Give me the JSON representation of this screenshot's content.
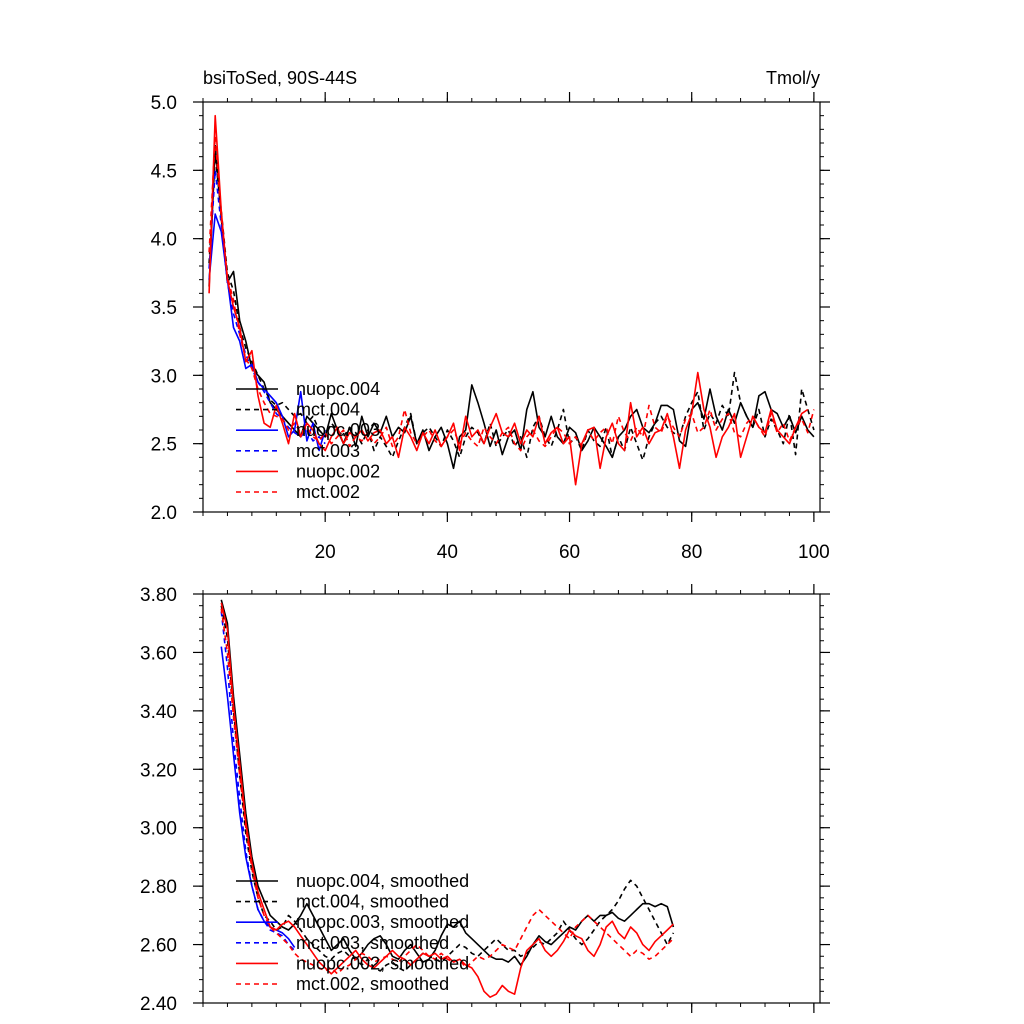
{
  "chart_data": [
    {
      "type": "line",
      "title": "bsiToSed, 90S-44S",
      "units": "Tmol/y",
      "xlim": [
        0,
        101
      ],
      "ylim": [
        2.0,
        5.0
      ],
      "xticks": [
        20,
        40,
        60,
        80,
        100
      ],
      "yticks": [
        2.0,
        2.5,
        3.0,
        3.5,
        4.0,
        4.5,
        5.0
      ],
      "ytick_labels": [
        "2.0",
        "2.5",
        "3.0",
        "3.5",
        "4.0",
        "4.5",
        "5.0"
      ],
      "legend_position": "lower-left",
      "x_start": 1,
      "series": [
        {
          "name": "nuopc.004",
          "color": "#000000",
          "dash": false,
          "values": [
            3.65,
            4.68,
            4.15,
            3.68,
            3.76,
            3.4,
            3.25,
            3.05,
            3.0,
            2.95,
            2.8,
            2.75,
            2.7,
            2.65,
            2.6,
            2.55,
            2.7,
            2.65,
            2.6,
            2.55,
            2.72,
            2.6,
            2.5,
            2.62,
            2.48,
            2.7,
            2.55,
            2.65,
            2.58,
            2.7,
            2.55,
            2.62,
            2.58,
            2.7,
            2.5,
            2.6,
            2.45,
            2.55,
            2.62,
            2.5,
            2.32,
            2.55,
            2.6,
            2.93,
            2.8,
            2.65,
            2.48,
            2.6,
            2.42,
            2.55,
            2.6,
            2.45,
            2.75,
            2.88,
            2.62,
            2.55,
            2.7,
            2.55,
            2.5,
            2.62,
            2.58,
            2.45,
            2.52,
            2.62,
            2.55,
            2.48,
            2.4,
            2.55,
            2.6,
            2.7,
            2.75,
            2.62,
            2.58,
            2.65,
            2.78,
            2.78,
            2.75,
            2.52,
            2.48,
            2.75,
            2.8,
            2.68,
            2.9,
            2.7,
            2.6,
            2.75,
            2.65,
            2.8,
            2.7,
            2.62,
            2.85,
            2.88,
            2.75,
            2.72,
            2.62,
            2.7,
            2.58,
            2.7,
            2.6,
            2.55
          ]
        },
        {
          "name": "mct.004",
          "color": "#000000",
          "dash": true,
          "values": [
            3.82,
            4.6,
            4.2,
            3.75,
            3.62,
            3.35,
            3.2,
            3.1,
            3.0,
            2.9,
            2.82,
            2.78,
            2.8,
            2.75,
            2.7,
            2.72,
            2.65,
            2.7,
            2.6,
            2.55,
            2.65,
            2.6,
            2.55,
            2.62,
            2.58,
            2.5,
            2.6,
            2.45,
            2.55,
            2.48,
            2.4,
            2.52,
            2.62,
            2.72,
            2.5,
            2.58,
            2.62,
            2.55,
            2.48,
            2.6,
            2.52,
            2.4,
            2.55,
            2.62,
            2.58,
            2.5,
            2.65,
            2.48,
            2.55,
            2.6,
            2.48,
            2.55,
            2.4,
            2.62,
            2.7,
            2.55,
            2.48,
            2.6,
            2.75,
            2.5,
            2.55,
            2.45,
            2.6,
            2.52,
            2.48,
            2.62,
            2.4,
            2.55,
            2.45,
            2.62,
            2.5,
            2.38,
            2.55,
            2.65,
            2.7,
            2.62,
            2.58,
            2.55,
            2.7,
            2.8,
            2.88,
            2.6,
            2.72,
            2.65,
            2.78,
            2.7,
            3.02,
            2.8,
            2.7,
            2.62,
            2.75,
            2.55,
            2.68,
            2.6,
            2.5,
            2.72,
            2.42,
            2.9,
            2.75,
            2.6
          ]
        },
        {
          "name": "nuopc.003",
          "color": "#0000ff",
          "dash": false,
          "values": [
            3.7,
            4.18,
            4.05,
            3.7,
            3.35,
            3.25,
            3.05,
            3.08,
            2.95,
            2.9,
            2.85,
            2.8,
            2.7,
            2.55,
            2.6,
            2.88,
            2.52,
            2.65,
            2.45,
            2.6
          ]
        },
        {
          "name": "mct.003",
          "color": "#0000ff",
          "dash": true,
          "values": [
            3.78,
            4.5,
            4.1,
            3.68,
            3.45,
            3.3,
            3.15,
            3.05,
            2.95,
            2.88,
            2.8,
            2.72,
            2.68,
            2.62,
            2.58,
            2.55,
            2.6,
            2.52,
            2.55,
            2.5
          ]
        },
        {
          "name": "nuopc.002",
          "color": "#ff0000",
          "dash": false,
          "values": [
            3.6,
            4.9,
            4.2,
            3.7,
            3.5,
            3.35,
            3.1,
            3.18,
            2.85,
            2.65,
            2.62,
            2.78,
            2.65,
            2.5,
            2.72,
            2.55,
            2.65,
            2.6,
            2.5,
            2.45,
            2.55,
            2.62,
            2.5,
            2.58,
            2.55,
            2.6,
            2.52,
            2.58,
            2.6,
            2.5,
            2.55,
            2.4,
            2.62,
            2.55,
            2.45,
            2.58,
            2.5,
            2.6,
            2.48,
            2.55,
            2.65,
            2.45,
            2.7,
            2.55,
            2.6,
            2.5,
            2.62,
            2.72,
            2.58,
            2.55,
            2.65,
            2.5,
            2.6,
            2.55,
            2.7,
            2.5,
            2.58,
            2.62,
            2.5,
            2.55,
            2.2,
            2.5,
            2.6,
            2.62,
            2.32,
            2.55,
            2.65,
            2.5,
            2.45,
            2.8,
            2.55,
            2.62,
            2.5,
            2.58,
            2.6,
            2.72,
            2.55,
            2.32,
            2.6,
            2.72,
            3.02,
            2.75,
            2.62,
            2.4,
            2.55,
            2.62,
            2.72,
            2.4,
            2.55,
            2.7,
            2.62,
            2.58,
            2.75,
            2.6,
            2.55,
            2.5,
            2.62,
            2.72,
            2.75
          ]
        },
        {
          "name": "mct.002",
          "color": "#ff0000",
          "dash": true,
          "values": [
            3.9,
            4.75,
            4.15,
            3.72,
            3.55,
            3.3,
            3.12,
            3.05,
            2.9,
            2.8,
            2.72,
            2.7,
            2.68,
            2.6,
            2.65,
            2.58,
            2.62,
            2.55,
            2.52,
            2.58,
            2.5,
            2.55,
            2.6,
            2.48,
            2.55,
            2.52,
            2.58,
            2.5,
            2.55,
            2.62,
            2.48,
            2.55,
            2.75,
            2.58,
            2.5,
            2.55,
            2.6,
            2.52,
            2.48,
            2.55,
            2.6,
            2.5,
            2.58,
            2.52,
            2.48,
            2.62,
            2.55,
            2.5,
            2.58,
            2.62,
            2.5,
            2.45,
            2.55,
            2.6,
            2.52,
            2.48,
            2.55,
            2.62,
            2.58,
            2.5,
            2.55,
            2.48,
            2.6,
            2.52,
            2.58,
            2.62,
            2.5,
            2.7,
            2.58,
            2.52,
            2.62,
            2.55,
            2.78,
            2.62,
            2.58,
            2.7,
            2.62,
            2.55,
            2.68,
            2.72,
            2.58,
            2.62,
            2.75,
            2.6,
            2.68,
            2.72,
            2.58,
            2.55,
            2.65,
            2.7,
            2.62,
            2.55,
            2.72,
            2.58,
            2.65,
            2.52,
            2.62,
            2.68,
            2.58,
            2.75
          ]
        }
      ],
      "legend": [
        "nuopc.004",
        "mct.004",
        "nuopc.003",
        "mct.003",
        "nuopc.002",
        "mct.002"
      ]
    },
    {
      "type": "line",
      "title": "",
      "xlim": [
        0,
        101
      ],
      "ylim": [
        2.4,
        3.8
      ],
      "xticks": [
        20,
        40,
        60,
        80,
        100
      ],
      "yticks": [
        2.4,
        2.6,
        2.8,
        3.0,
        3.2,
        3.4,
        3.6,
        3.8
      ],
      "ytick_labels": [
        "2.40",
        "2.60",
        "2.80",
        "3.00",
        "3.20",
        "3.40",
        "3.60",
        "3.80"
      ],
      "legend_position": "lower-left",
      "x_start": 3,
      "series": [
        {
          "name": "nuopc.004, smoothed",
          "color": "#000000",
          "dash": false,
          "values": [
            3.78,
            3.7,
            3.45,
            3.25,
            3.05,
            2.9,
            2.8,
            2.75,
            2.7,
            2.68,
            2.66,
            2.65,
            2.67,
            2.7,
            2.74,
            2.7,
            2.66,
            2.62,
            2.58,
            2.6,
            2.62,
            2.58,
            2.55,
            2.57,
            2.6,
            2.62,
            2.63,
            2.6,
            2.56,
            2.55,
            2.58,
            2.6,
            2.57,
            2.54,
            2.55,
            2.58,
            2.63,
            2.67,
            2.66,
            2.68,
            2.64,
            2.62,
            2.6,
            2.58,
            2.56,
            2.55,
            2.55,
            2.54,
            2.56,
            2.53,
            2.56,
            2.6,
            2.63,
            2.61,
            2.6,
            2.62,
            2.64,
            2.66,
            2.65,
            2.68,
            2.7,
            2.68,
            2.7,
            2.7,
            2.71,
            2.69,
            2.68,
            2.7,
            2.72,
            2.74,
            2.74,
            2.73,
            2.74,
            2.73,
            2.66
          ]
        },
        {
          "name": "mct.004, smoothed",
          "color": "#000000",
          "dash": true,
          "values": [
            3.76,
            3.65,
            3.4,
            3.18,
            2.98,
            2.85,
            2.76,
            2.7,
            2.68,
            2.65,
            2.66,
            2.7,
            2.68,
            2.65,
            2.62,
            2.6,
            2.58,
            2.56,
            2.55,
            2.57,
            2.58,
            2.56,
            2.55,
            2.53,
            2.55,
            2.52,
            2.51,
            2.53,
            2.54,
            2.52,
            2.51,
            2.53,
            2.55,
            2.57,
            2.56,
            2.55,
            2.54,
            2.56,
            2.58,
            2.6,
            2.59,
            2.57,
            2.56,
            2.58,
            2.6,
            2.62,
            2.6,
            2.58,
            2.58,
            2.56,
            2.57,
            2.59,
            2.61,
            2.6,
            2.62,
            2.64,
            2.68,
            2.65,
            2.62,
            2.6,
            2.62,
            2.65,
            2.68,
            2.7,
            2.72,
            2.75,
            2.79,
            2.82,
            2.8,
            2.76,
            2.72,
            2.68,
            2.64,
            2.6,
            2.64
          ]
        },
        {
          "name": "nuopc.003, smoothed",
          "color": "#0000ff",
          "dash": false,
          "values": [
            3.62,
            3.45,
            3.25,
            3.05,
            2.9,
            2.8,
            2.72,
            2.68,
            2.66,
            2.65,
            2.64,
            2.62,
            2.59
          ]
        },
        {
          "name": "mct.003, smoothed",
          "color": "#0000ff",
          "dash": true,
          "values": [
            3.74,
            3.55,
            3.3,
            3.1,
            2.92,
            2.8,
            2.72,
            2.68,
            2.65,
            2.64,
            2.63,
            2.6,
            2.58
          ]
        },
        {
          "name": "nuopc.002, smoothed",
          "color": "#ff0000",
          "dash": false,
          "values": [
            3.77,
            3.68,
            3.42,
            3.22,
            3.02,
            2.88,
            2.78,
            2.72,
            2.66,
            2.65,
            2.67,
            2.68,
            2.66,
            2.63,
            2.6,
            2.57,
            2.54,
            2.52,
            2.5,
            2.52,
            2.54,
            2.56,
            2.58,
            2.55,
            2.53,
            2.52,
            2.54,
            2.56,
            2.58,
            2.56,
            2.55,
            2.53,
            2.55,
            2.57,
            2.56,
            2.57,
            2.55,
            2.56,
            2.54,
            2.55,
            2.53,
            2.52,
            2.49,
            2.44,
            2.42,
            2.43,
            2.46,
            2.44,
            2.43,
            2.52,
            2.58,
            2.6,
            2.62,
            2.58,
            2.56,
            2.58,
            2.61,
            2.65,
            2.63,
            2.62,
            2.58,
            2.56,
            2.6,
            2.66,
            2.68,
            2.64,
            2.62,
            2.66,
            2.64,
            2.6,
            2.58,
            2.61,
            2.63,
            2.65,
            2.67
          ]
        },
        {
          "name": "mct.002, smoothed",
          "color": "#ff0000",
          "dash": true,
          "values": [
            3.75,
            3.6,
            3.38,
            3.18,
            3.0,
            2.86,
            2.76,
            2.7,
            2.66,
            2.64,
            2.62,
            2.6,
            2.57,
            2.55,
            2.54,
            2.53,
            2.52,
            2.51,
            2.52,
            2.5,
            2.52,
            2.53,
            2.55,
            2.57,
            2.56,
            2.54,
            2.55,
            2.56,
            2.55,
            2.54,
            2.56,
            2.58,
            2.6,
            2.58,
            2.56,
            2.55,
            2.57,
            2.55,
            2.54,
            2.55,
            2.52,
            2.54,
            2.56,
            2.55,
            2.56,
            2.58,
            2.6,
            2.59,
            2.58,
            2.62,
            2.66,
            2.7,
            2.72,
            2.7,
            2.68,
            2.66,
            2.64,
            2.62,
            2.66,
            2.68,
            2.7,
            2.68,
            2.66,
            2.64,
            2.62,
            2.6,
            2.58,
            2.56,
            2.58,
            2.57,
            2.55,
            2.56,
            2.58,
            2.6,
            2.62
          ]
        }
      ],
      "legend": [
        "nuopc.004, smoothed",
        "mct.004, smoothed",
        "nuopc.003, smoothed",
        "mct.003, smoothed",
        "nuopc.002, smoothed",
        "mct.002, smoothed"
      ]
    }
  ]
}
